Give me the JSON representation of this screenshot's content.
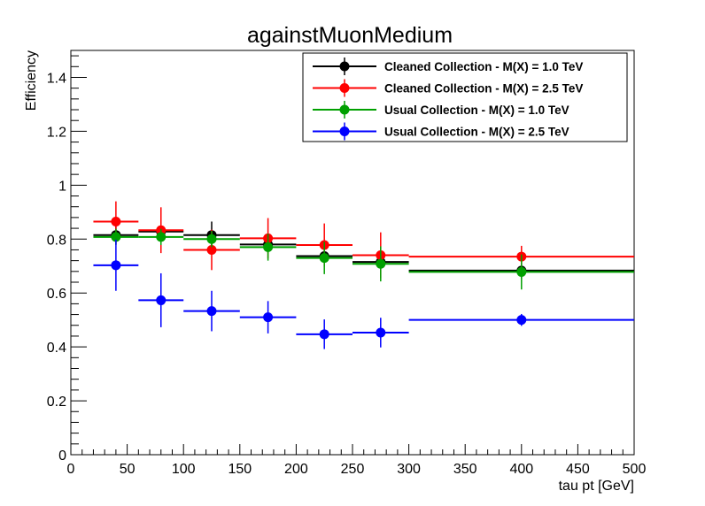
{
  "chart_data": {
    "type": "scatter",
    "title": "againstMuonMedium",
    "xlabel": "tau pt [GeV]",
    "ylabel": "Efficiency",
    "xlim": [
      0,
      500
    ],
    "ylim": [
      0,
      1.5
    ],
    "x_ticks": [
      "0",
      "50",
      "100",
      "150",
      "200",
      "250",
      "300",
      "350",
      "400",
      "450",
      "500"
    ],
    "y_ticks": [
      "0",
      "0.2",
      "0.4",
      "0.6",
      "0.8",
      "1",
      "1.2",
      "1.4"
    ],
    "grid": false,
    "legend_position": "top-right",
    "series": [
      {
        "name": "Cleaned Collection - M(X) = 1.0 TeV",
        "color": "#000000",
        "points": [
          {
            "x": 40,
            "xlo": 20,
            "xhi": 60,
            "y": 0.815,
            "yerr": 0.035
          },
          {
            "x": 80,
            "xlo": 60,
            "xhi": 100,
            "y": 0.828,
            "yerr": 0.03
          },
          {
            "x": 125,
            "xlo": 100,
            "xhi": 150,
            "y": 0.815,
            "yerr": 0.05
          },
          {
            "x": 175,
            "xlo": 150,
            "xhi": 200,
            "y": 0.78,
            "yerr": 0.03
          },
          {
            "x": 225,
            "xlo": 200,
            "xhi": 250,
            "y": 0.737,
            "yerr": 0.025
          },
          {
            "x": 275,
            "xlo": 250,
            "xhi": 300,
            "y": 0.715,
            "yerr": 0.025
          },
          {
            "x": 400,
            "xlo": 300,
            "xhi": 500,
            "y": 0.683,
            "yerr": 0.03
          }
        ]
      },
      {
        "name": "Cleaned Collection - M(X) = 2.5 TeV",
        "color": "#ff0000",
        "points": [
          {
            "x": 40,
            "xlo": 20,
            "xhi": 60,
            "y": 0.865,
            "yerr": 0.075
          },
          {
            "x": 80,
            "xlo": 60,
            "xhi": 100,
            "y": 0.833,
            "yerr": 0.085
          },
          {
            "x": 125,
            "xlo": 100,
            "xhi": 150,
            "y": 0.76,
            "yerr": 0.075
          },
          {
            "x": 175,
            "xlo": 150,
            "xhi": 200,
            "y": 0.803,
            "yerr": 0.075
          },
          {
            "x": 225,
            "xlo": 200,
            "xhi": 250,
            "y": 0.778,
            "yerr": 0.08
          },
          {
            "x": 275,
            "xlo": 250,
            "xhi": 300,
            "y": 0.74,
            "yerr": 0.085
          },
          {
            "x": 400,
            "xlo": 300,
            "xhi": 500,
            "y": 0.735,
            "yerr": 0.04
          }
        ]
      },
      {
        "name": "Usual Collection - M(X) = 1.0 TeV",
        "color": "#00a000",
        "points": [
          {
            "x": 40,
            "xlo": 20,
            "xhi": 60,
            "y": 0.808,
            "yerr": 0.03
          },
          {
            "x": 80,
            "xlo": 60,
            "xhi": 100,
            "y": 0.808,
            "yerr": 0.03
          },
          {
            "x": 125,
            "xlo": 100,
            "xhi": 150,
            "y": 0.8,
            "yerr": 0.03
          },
          {
            "x": 175,
            "xlo": 150,
            "xhi": 200,
            "y": 0.77,
            "yerr": 0.05
          },
          {
            "x": 225,
            "xlo": 200,
            "xhi": 250,
            "y": 0.73,
            "yerr": 0.06
          },
          {
            "x": 275,
            "xlo": 250,
            "xhi": 300,
            "y": 0.708,
            "yerr": 0.065
          },
          {
            "x": 400,
            "xlo": 300,
            "xhi": 500,
            "y": 0.678,
            "yerr": 0.065
          }
        ]
      },
      {
        "name": "Usual Collection - M(X) = 2.5 TeV",
        "color": "#0000ff",
        "points": [
          {
            "x": 40,
            "xlo": 20,
            "xhi": 60,
            "y": 0.703,
            "yerr": 0.095
          },
          {
            "x": 80,
            "xlo": 60,
            "xhi": 100,
            "y": 0.573,
            "yerr": 0.1
          },
          {
            "x": 125,
            "xlo": 100,
            "xhi": 150,
            "y": 0.533,
            "yerr": 0.075
          },
          {
            "x": 175,
            "xlo": 150,
            "xhi": 200,
            "y": 0.51,
            "yerr": 0.06
          },
          {
            "x": 225,
            "xlo": 200,
            "xhi": 250,
            "y": 0.447,
            "yerr": 0.055
          },
          {
            "x": 275,
            "xlo": 250,
            "xhi": 300,
            "y": 0.453,
            "yerr": 0.055
          },
          {
            "x": 400,
            "xlo": 300,
            "xhi": 500,
            "y": 0.5,
            "yerr": 0.022
          }
        ]
      }
    ]
  }
}
